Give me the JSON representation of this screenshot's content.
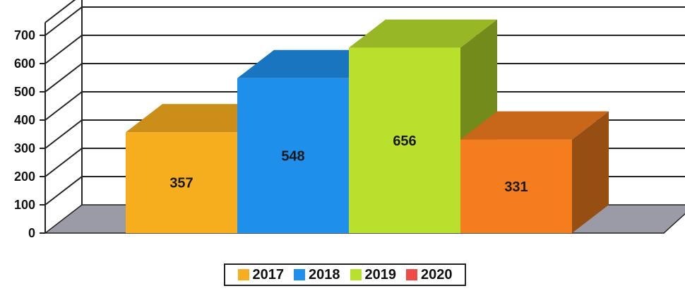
{
  "chart_data": {
    "type": "bar",
    "categories": [
      "2017",
      "2018",
      "2019",
      "2020"
    ],
    "values": [
      357,
      548,
      656,
      331
    ],
    "data_labels": [
      "357",
      "548",
      "656",
      "331"
    ],
    "yticks": [
      "0",
      "100",
      "200",
      "300",
      "400",
      "500",
      "600",
      "700"
    ],
    "ylim": [
      0,
      700
    ],
    "grid": true,
    "three_d": true,
    "legend": {
      "position": "bottom",
      "entries": [
        {
          "label": "2017",
          "color": "#F7AE1E"
        },
        {
          "label": "2018",
          "color": "#1E8FEA"
        },
        {
          "label": "2019",
          "color": "#B8E02C"
        },
        {
          "label": "2020",
          "color": "#EF4A43"
        }
      ]
    },
    "bar_colors": [
      "#F7AE1E",
      "#1E8FEA",
      "#B8E02C",
      "#F47E1E"
    ],
    "floor_color": "#9A9BA6"
  }
}
